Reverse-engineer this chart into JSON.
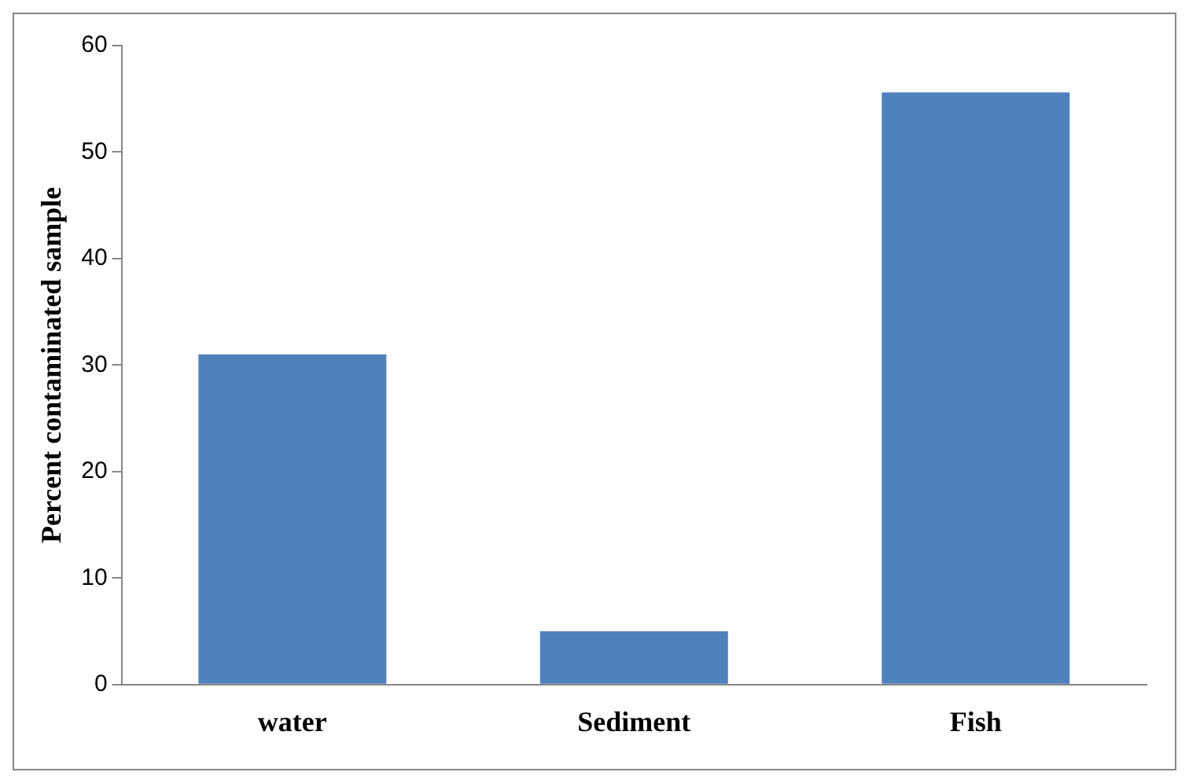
{
  "chart_data": {
    "type": "bar",
    "ylabel": "Percent contaminated sample",
    "categories": [
      "water",
      "Sediment",
      "Fish"
    ],
    "values": [
      31,
      5,
      55.6
    ],
    "color": "#4f81bd",
    "ylim": [
      0,
      60
    ],
    "yticks": [
      0,
      10,
      20,
      30,
      40,
      50,
      60
    ],
    "grid": false,
    "legend": false
  }
}
